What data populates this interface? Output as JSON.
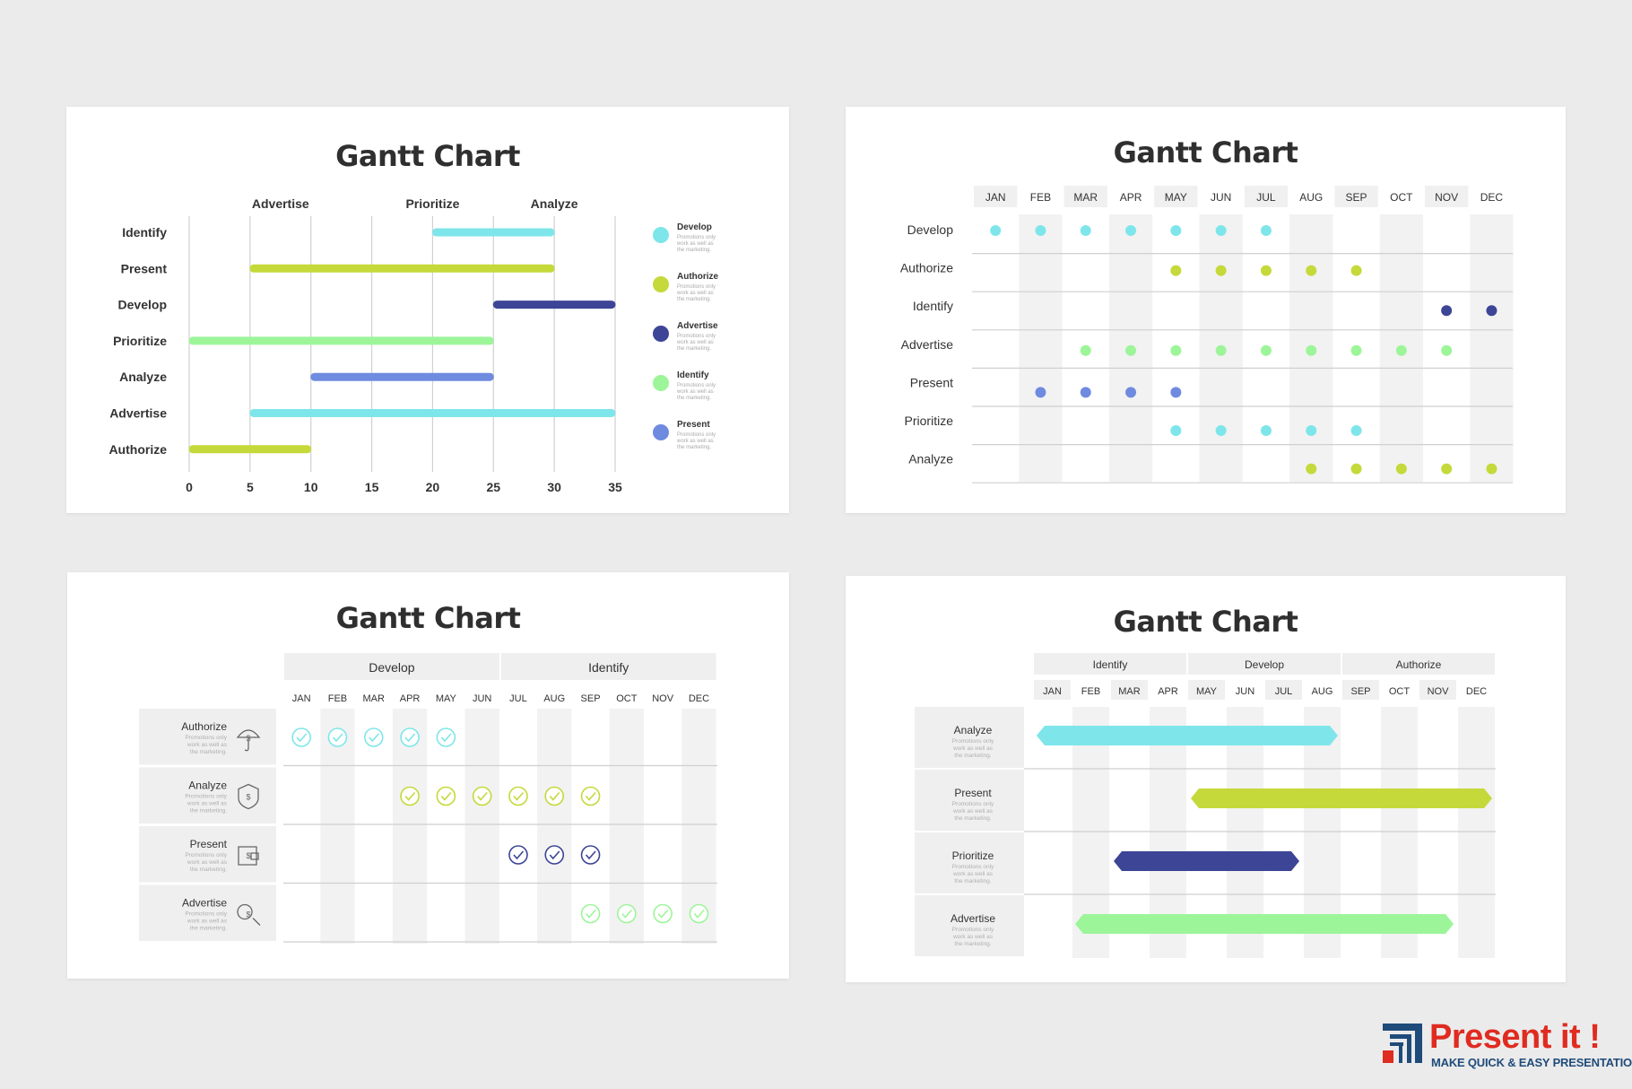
{
  "chart_data": [
    {
      "type": "bar",
      "subtype": "gantt",
      "title": "Gantt Chart",
      "phases": [
        "Advertise",
        "Prioritize",
        "Analyze"
      ],
      "xticks": [
        0,
        5,
        10,
        15,
        20,
        25,
        30,
        35
      ],
      "xlim": [
        0,
        35
      ],
      "tasks": [
        {
          "name": "Identify",
          "start": 20,
          "end": 30,
          "color": "#7ee6ea"
        },
        {
          "name": "Present",
          "start": 5,
          "end": 30,
          "color": "#c5d93a"
        },
        {
          "name": "Develop",
          "start": 25,
          "end": 35,
          "color": "#3d4596"
        },
        {
          "name": "Prioritize",
          "start": 0,
          "end": 25,
          "color": "#9df59a"
        },
        {
          "name": "Analyze",
          "start": 10,
          "end": 25,
          "color": "#6f8be0"
        },
        {
          "name": "Advertise",
          "start": 5,
          "end": 35,
          "color": "#7ee6ea"
        },
        {
          "name": "Authorize",
          "start": 0,
          "end": 10,
          "color": "#c5d93a"
        }
      ],
      "legend": [
        {
          "name": "Develop",
          "desc": "Promotions only work as well as the marketing.",
          "color": "#7ee6ea"
        },
        {
          "name": "Authorize",
          "desc": "Promotions only work as well as the marketing.",
          "color": "#c5d93a"
        },
        {
          "name": "Advertise",
          "desc": "Promotions only work as well as the marketing.",
          "color": "#3d4596"
        },
        {
          "name": "Identify",
          "desc": "Promotions only work as well as the marketing.",
          "color": "#9df59a"
        },
        {
          "name": "Present",
          "desc": "Promotions only work as well as the marketing.",
          "color": "#6f8be0"
        }
      ],
      "legend_position": "right",
      "grid": true
    },
    {
      "type": "scatter",
      "subtype": "gantt-dots",
      "title": "Gantt Chart",
      "months": [
        "JAN",
        "FEB",
        "MAR",
        "APR",
        "MAY",
        "JUN",
        "JUL",
        "AUG",
        "SEP",
        "OCT",
        "NOV",
        "DEC"
      ],
      "rows": [
        {
          "name": "Develop",
          "months": [
            1,
            2,
            3,
            4,
            5,
            6,
            7
          ],
          "color": "#7ee6ea"
        },
        {
          "name": "Authorize",
          "months": [
            5,
            6,
            7,
            8,
            9
          ],
          "color": "#c5d93a"
        },
        {
          "name": "Identify",
          "months": [
            11,
            12
          ],
          "color": "#3d4596"
        },
        {
          "name": "Advertise",
          "months": [
            3,
            4,
            5,
            6,
            7,
            8,
            9,
            10,
            11
          ],
          "color": "#9df59a"
        },
        {
          "name": "Present",
          "months": [
            2,
            3,
            4,
            5
          ],
          "color": "#6f8be0"
        },
        {
          "name": "Prioritize",
          "months": [
            5,
            6,
            7,
            8,
            9
          ],
          "color": "#7ee6ea"
        },
        {
          "name": "Analyze",
          "months": [
            8,
            9,
            10,
            11,
            12
          ],
          "color": "#c5d93a"
        }
      ]
    },
    {
      "type": "table",
      "subtype": "gantt-checks",
      "title": "Gantt Chart",
      "phases": [
        {
          "name": "Develop",
          "months": [
            1,
            6
          ]
        },
        {
          "name": "Identify",
          "months": [
            7,
            12
          ]
        }
      ],
      "months": [
        "JAN",
        "FEB",
        "MAR",
        "APR",
        "MAY",
        "JUN",
        "JUL",
        "AUG",
        "SEP",
        "OCT",
        "NOV",
        "DEC"
      ],
      "rows": [
        {
          "name": "Authorize",
          "desc": "Promotions only work as well as the marketing.",
          "icon": "umbrella-dollar-icon",
          "months": [
            1,
            2,
            3,
            4,
            5
          ],
          "color": "#7ee6ea"
        },
        {
          "name": "Analyze",
          "desc": "Promotions only work as well as the marketing.",
          "icon": "shield-dollar-icon",
          "months": [
            4,
            5,
            6,
            7,
            8,
            9
          ],
          "color": "#c5d93a"
        },
        {
          "name": "Present",
          "desc": "Promotions only work as well as the marketing.",
          "icon": "wallet-icon",
          "months": [
            7,
            8,
            9
          ],
          "color": "#3d4596"
        },
        {
          "name": "Advertise",
          "desc": "Promotions only work as well as the marketing.",
          "icon": "magnifier-dollar-icon",
          "months": [
            9,
            10,
            11,
            12
          ],
          "color": "#9df59a"
        }
      ]
    },
    {
      "type": "bar",
      "subtype": "gantt-hex",
      "title": "Gantt Chart",
      "phases": [
        {
          "name": "Identify",
          "months": [
            1,
            4
          ]
        },
        {
          "name": "Develop",
          "months": [
            5,
            8
          ]
        },
        {
          "name": "Authorize",
          "months": [
            9,
            12
          ]
        }
      ],
      "months": [
        "JAN",
        "FEB",
        "MAR",
        "APR",
        "MAY",
        "JUN",
        "JUL",
        "AUG",
        "SEP",
        "OCT",
        "NOV",
        "DEC"
      ],
      "rows": [
        {
          "name": "Analyze",
          "desc": "Promotions only work as well as the marketing.",
          "start": 1,
          "end": 8,
          "color": "#7ee6ea"
        },
        {
          "name": "Present",
          "desc": "Promotions only work as well as the marketing.",
          "start": 5,
          "end": 12,
          "color": "#c5d93a"
        },
        {
          "name": "Prioritize",
          "desc": "Promotions only work as well as the marketing.",
          "start": 3,
          "end": 7,
          "color": "#3d4596"
        },
        {
          "name": "Advertise",
          "desc": "Promotions only work as well as the marketing.",
          "start": 2,
          "end": 11,
          "color": "#9df59a"
        }
      ]
    }
  ],
  "brand": {
    "name": "Present it !",
    "tagline": "MAKE QUICK & EASY PRESENTATIONS",
    "color": "#e02b20",
    "tag_color": "#1f4b7a"
  }
}
